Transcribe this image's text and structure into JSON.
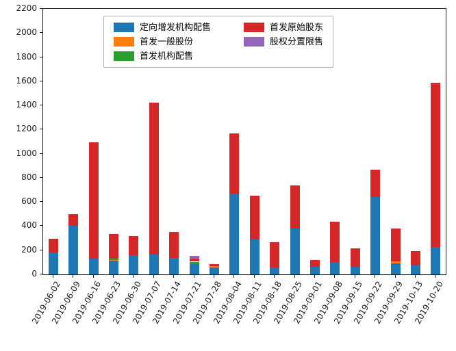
{
  "figure": {
    "background": "#ffffff",
    "axis_color": "#1a1a1a"
  },
  "chart_data": {
    "type": "bar",
    "stacked": true,
    "title": "",
    "xlabel": "",
    "ylabel": "",
    "ylim": [
      0,
      2200
    ],
    "ytick_step": 200,
    "grid": false,
    "legend_position": "upper center",
    "legend_ncol": 2,
    "legend_columns": [
      [
        0,
        1,
        2
      ],
      [
        3,
        4
      ]
    ],
    "categories": [
      "2019-06-02",
      "2019-06-09",
      "2019-06-16",
      "2019-06-23",
      "2019-06-30",
      "2019-07-07",
      "2019-07-14",
      "2019-07-21",
      "2019-07-28",
      "2019-08-04",
      "2019-08-11",
      "2019-08-18",
      "2019-08-25",
      "2019-09-01",
      "2019-09-08",
      "2019-09-15",
      "2019-09-22",
      "2019-09-29",
      "2019-10-13",
      "2019-10-20"
    ],
    "series": [
      {
        "name": "定向增发机构配售",
        "color": "#1f77b4",
        "values": [
          180,
          405,
          130,
          115,
          160,
          165,
          135,
          85,
          55,
          670,
          290,
          55,
          380,
          60,
          100,
          65,
          640,
          90,
          75,
          225
        ]
      },
      {
        "name": "首发一般股份",
        "color": "#ff7f0e",
        "values": [
          0,
          0,
          0,
          5,
          0,
          0,
          0,
          0,
          12,
          0,
          0,
          0,
          0,
          0,
          0,
          0,
          0,
          20,
          0,
          0
        ]
      },
      {
        "name": "首发机构配售",
        "color": "#2ca02c",
        "values": [
          0,
          0,
          0,
          10,
          0,
          0,
          0,
          20,
          0,
          0,
          0,
          0,
          0,
          0,
          0,
          0,
          0,
          0,
          0,
          0
        ]
      },
      {
        "name": "首发原始股东",
        "color": "#d62728",
        "values": [
          115,
          95,
          965,
          205,
          160,
          1260,
          215,
          25,
          18,
          500,
          365,
          210,
          360,
          60,
          335,
          150,
          230,
          270,
          120,
          1365
        ]
      },
      {
        "name": "股权分置限售",
        "color": "#9467bd",
        "values": [
          0,
          0,
          0,
          0,
          0,
          0,
          0,
          25,
          0,
          0,
          0,
          0,
          0,
          0,
          0,
          0,
          0,
          0,
          0,
          0
        ]
      }
    ]
  }
}
